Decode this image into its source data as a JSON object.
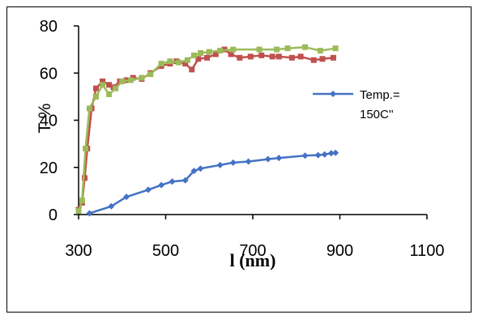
{
  "chart_data": {
    "type": "line",
    "xlabel": "l (nm)",
    "ylabel": "T %",
    "xlim": [
      300,
      1100
    ],
    "ylim": [
      0,
      80
    ],
    "xticks": [
      "300",
      "500",
      "700",
      "900",
      "1100"
    ],
    "yticks": [
      "0",
      "20",
      "40",
      "60",
      "80"
    ],
    "legend": {
      "position": "right",
      "label_line1": "Temp.=",
      "label_line2": "150C''"
    },
    "series": [
      {
        "name": "Temp.= 150C''",
        "color": "#4472C4",
        "marker": "diamond",
        "x": [
          325,
          375,
          410,
          460,
          490,
          515,
          545,
          565,
          580,
          625,
          655,
          690,
          735,
          760,
          820,
          850,
          865,
          880,
          890
        ],
        "y": [
          0.5,
          3.5,
          7.5,
          10.5,
          12.5,
          14,
          14.5,
          18.5,
          19.5,
          21,
          22,
          22.5,
          23.5,
          24,
          25,
          25.2,
          25.5,
          26,
          26.2
        ]
      },
      {
        "name": "",
        "color": "#C0504D",
        "marker": "square",
        "x": [
          300,
          308,
          314,
          320,
          330,
          340,
          355,
          370,
          380,
          395,
          410,
          425,
          445,
          465,
          490,
          510,
          525,
          545,
          560,
          575,
          595,
          615,
          635,
          650,
          670,
          695,
          720,
          745,
          760,
          790,
          810,
          840,
          860,
          885
        ],
        "y": [
          2,
          5,
          15.5,
          28,
          45,
          53.5,
          56.5,
          55,
          54,
          56.5,
          57,
          58,
          57.5,
          60,
          63,
          64,
          65,
          64,
          61.5,
          66,
          66.5,
          68,
          70,
          68,
          66.5,
          67,
          67.5,
          67,
          67,
          66.5,
          67,
          65.5,
          66,
          66.5
        ]
      },
      {
        "name": "",
        "color": "#9BBB59",
        "marker": "square",
        "x": [
          300,
          308,
          316,
          325,
          340,
          355,
          370,
          385,
          400,
          420,
          445,
          465,
          490,
          510,
          530,
          550,
          565,
          580,
          600,
          625,
          655,
          715,
          755,
          780,
          820,
          855,
          890
        ],
        "y": [
          1.5,
          6,
          28,
          45,
          50,
          55,
          51,
          53.5,
          56.5,
          57,
          58,
          59.5,
          64,
          65,
          64.5,
          65.5,
          67.5,
          68.5,
          69,
          69.5,
          70,
          70,
          70,
          70.5,
          71,
          69.5,
          70.5
        ]
      }
    ]
  }
}
